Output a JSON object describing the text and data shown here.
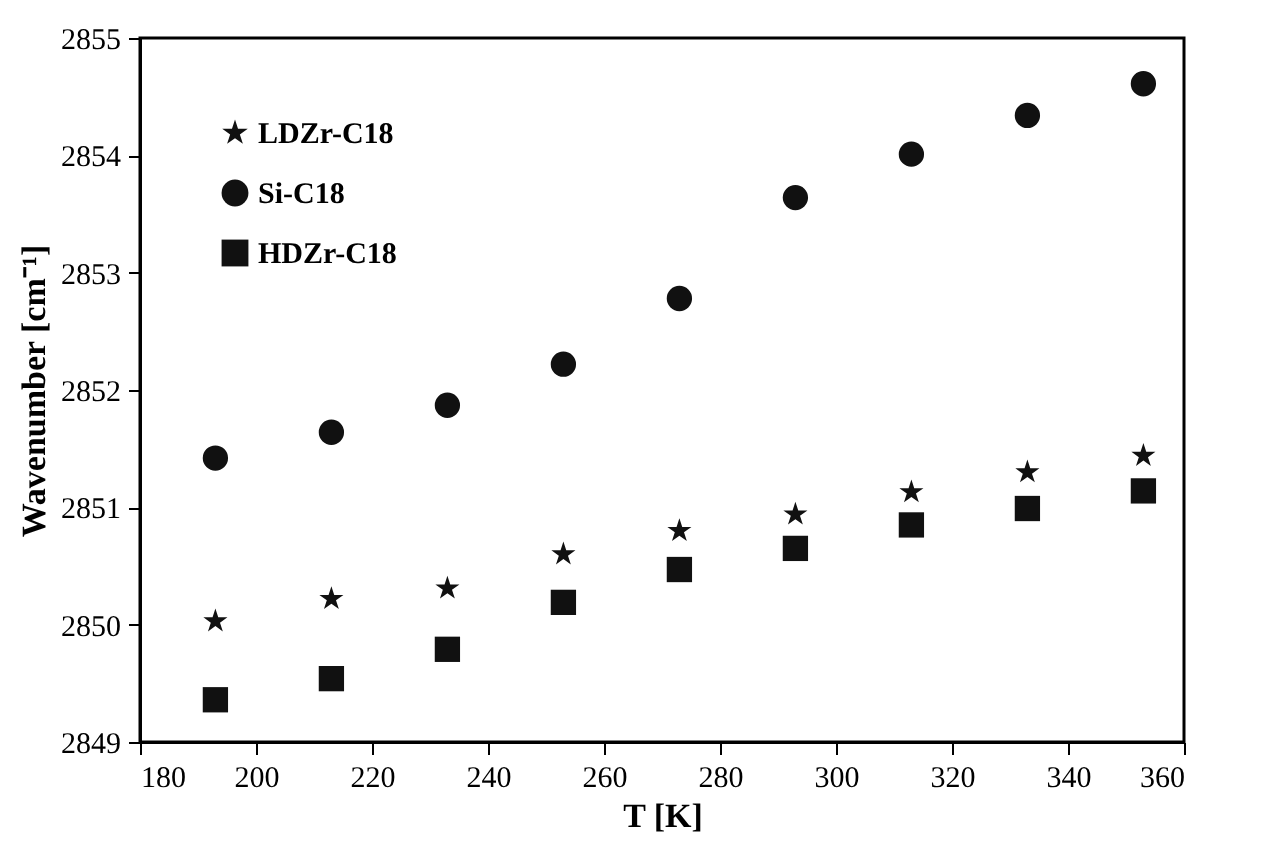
{
  "chart_data": {
    "type": "scatter",
    "xlabel": "T [K]",
    "ylabel": "Wavenumber [cm⁻¹]",
    "x": [
      193,
      213,
      233,
      253,
      273,
      293,
      313,
      333,
      353
    ],
    "series": [
      {
        "name": "LDZr-C18",
        "color": "#111111",
        "marker": "star",
        "values": [
          2850.03,
          2850.22,
          2850.31,
          2850.6,
          2850.8,
          2850.94,
          2851.13,
          2851.3,
          2851.44
        ]
      },
      {
        "name": "Si-C18",
        "color": "#111111",
        "marker": "circle",
        "values": [
          2851.42,
          2851.64,
          2851.87,
          2852.22,
          2852.78,
          2853.64,
          2854.01,
          2854.34,
          2854.61
        ]
      },
      {
        "name": "HDZr-C18",
        "color": "#111111",
        "marker": "square",
        "values": [
          2849.36,
          2849.54,
          2849.79,
          2850.19,
          2850.47,
          2850.65,
          2850.85,
          2850.99,
          2851.14
        ]
      }
    ],
    "xlim": [
      180,
      360
    ],
    "xticks": [
      180,
      200,
      220,
      240,
      260,
      280,
      300,
      320,
      340,
      360
    ],
    "ylim": [
      2849,
      2855
    ],
    "yticks": [
      2849,
      2850,
      2851,
      2852,
      2853,
      2854,
      2855
    ],
    "grid": false,
    "legend": "top left"
  }
}
